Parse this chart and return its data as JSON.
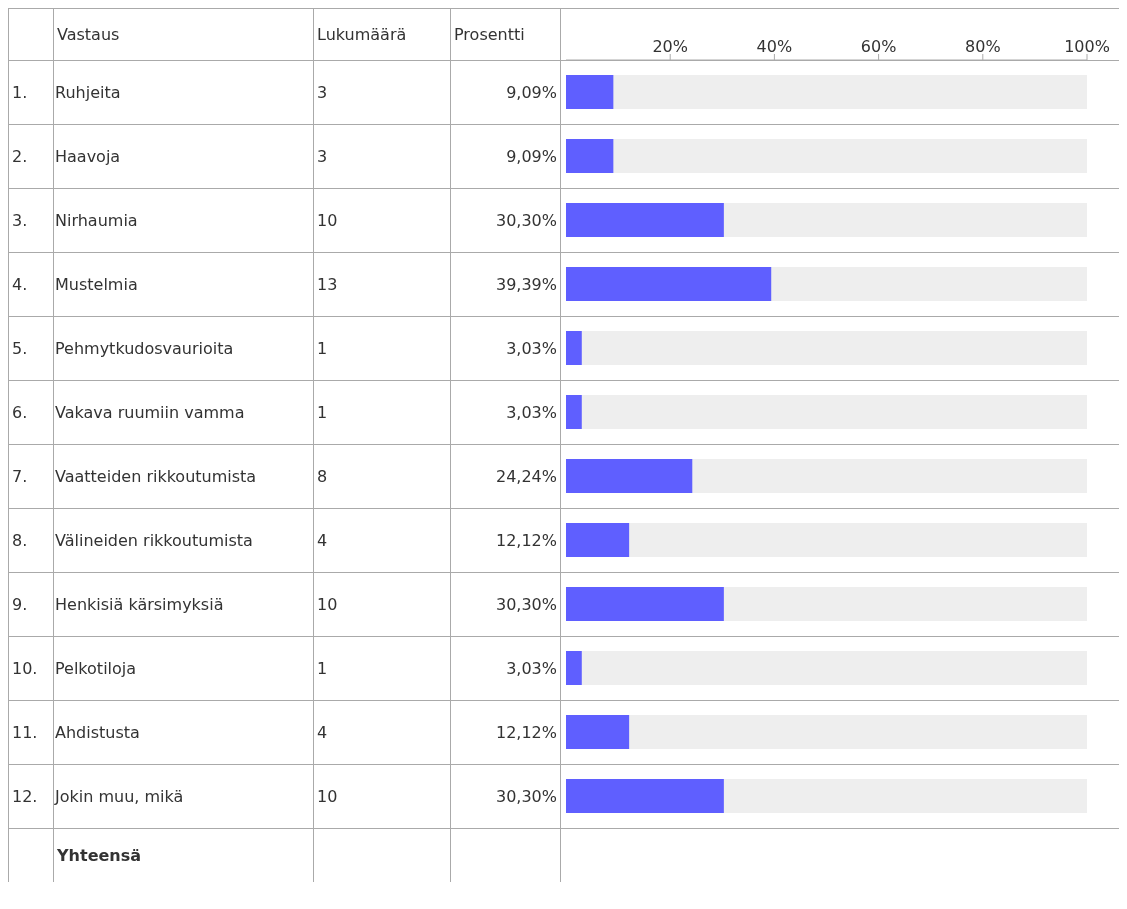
{
  "chart_data": {
    "type": "bar",
    "orientation": "horizontal",
    "ylabel": "Vastaus",
    "categories": [
      "Ruhjeita",
      "Haavoja",
      "Nirhaumia",
      "Mustelmia",
      "Pehmytkudosvaurioita",
      "Vakava ruumiin vamma",
      "Vaatteiden rikkoutumista",
      "Välineiden rikkoutumista",
      "Henkisiä kärsimyksiä",
      "Pelkotiloja",
      "Ahdistusta",
      "Jokin muu, mikä"
    ],
    "values": [
      9.09,
      9.09,
      30.3,
      39.39,
      3.03,
      3.03,
      24.24,
      12.12,
      30.3,
      3.03,
      12.12,
      30.3
    ],
    "value_labels": [
      "9,09%",
      "9,09%",
      "30,30%",
      "39,39%",
      "3,03%",
      "3,03%",
      "24,24%",
      "12,12%",
      "30,30%",
      "3,03%",
      "12,12%",
      "30,30%"
    ],
    "color": "#5f5fff",
    "x2lim": [
      0,
      100
    ],
    "x2ticks": [
      {
        "value": 20,
        "label": "20%"
      },
      {
        "value": 40,
        "label": "40%"
      },
      {
        "value": 60,
        "label": "60%"
      },
      {
        "value": 80,
        "label": "80%"
      },
      {
        "value": 100,
        "label": "100%"
      }
    ],
    "annotations": [
      "Lukumäärä",
      "Prosentti",
      "Yhteensä",
      "1.",
      "3",
      "2.",
      "3",
      "3.",
      "10",
      "4.",
      "13",
      "5.",
      "1",
      "6.",
      "1",
      "7.",
      "8",
      "8.",
      "4",
      "9.",
      "10",
      "10.",
      "1",
      "11.",
      "4",
      "12.",
      "10"
    ],
    "grid": "y",
    "legend": false
  }
}
